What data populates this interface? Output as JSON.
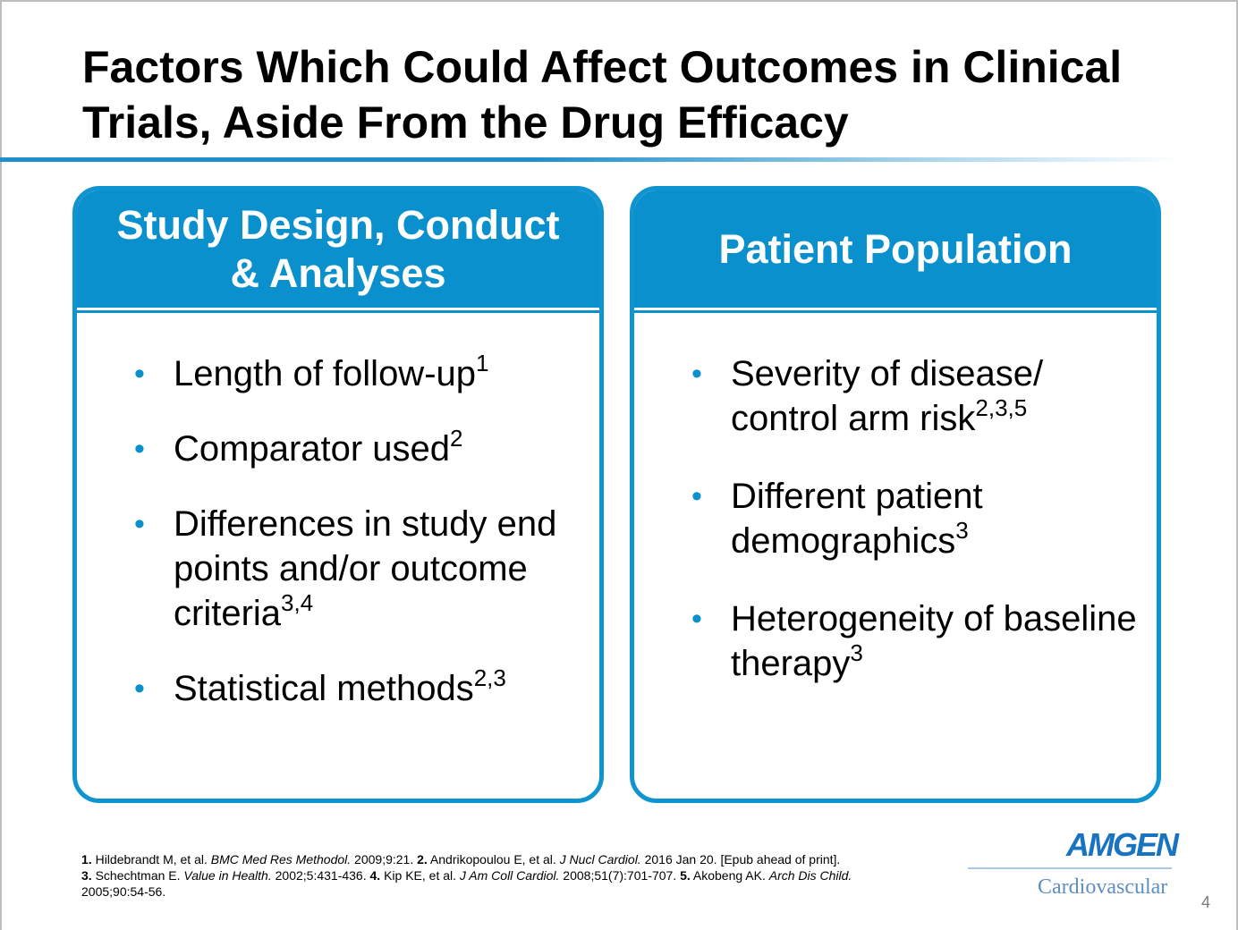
{
  "title": "Factors Which Could Affect Outcomes in Clinical Trials, Aside From the Drug Efficacy",
  "left_panel": {
    "heading_line1": "Study Design, Conduct",
    "heading_line2": "& Analyses",
    "bullet_char": "•",
    "items": [
      {
        "text": "Length of follow-up",
        "ref": "1"
      },
      {
        "text": "Comparator used",
        "ref": "2"
      },
      {
        "text": "Differences in study end points and/or outcome criteria",
        "ref": "3,4"
      },
      {
        "text": "Statistical methods",
        "ref": "2,3"
      }
    ]
  },
  "right_panel": {
    "heading": "Patient Population",
    "bullet_char": "•",
    "items": [
      {
        "text": "Severity of disease/ control arm risk",
        "ref": "2,3,5"
      },
      {
        "text": "Different patient demographics",
        "ref": "3"
      },
      {
        "text": "Heterogeneity of baseline therapy",
        "ref": "3"
      }
    ]
  },
  "references": {
    "r1_num": "1.",
    "r1_text": " Hildebrandt M, et al. ",
    "r1_journal": "BMC Med Res Methodol.",
    "r1_tail": " 2009;9:21. ",
    "r2_num": "2.",
    "r2_text": " Andrikopoulou E, et al. ",
    "r2_journal": "J Nucl Cardiol.",
    "r2_tail": " 2016 Jan 20. [Epub ahead of print].",
    "r3_num": "3.",
    "r3_text": " Schechtman E. ",
    "r3_journal": "Value in Health.",
    "r3_tail": " 2002;5:431-436. ",
    "r4_num": "4.",
    "r4_text": " Kip KE, et al. ",
    "r4_journal": "J Am Coll Cardiol.",
    "r4_tail": " 2008;51(7):701-707. ",
    "r5_num": "5.",
    "r5_text": " Akobeng AK. ",
    "r5_journal": "Arch Dis Child.",
    "r5_tail": " 2005;90:54-56."
  },
  "logo": {
    "brand": "AMGEN",
    "subtitle": "Cardiovascular"
  },
  "page_number": "4",
  "colors": {
    "accent": "#0a91cd",
    "panel_border": "#1094cf",
    "logo": "#1a73c0"
  }
}
